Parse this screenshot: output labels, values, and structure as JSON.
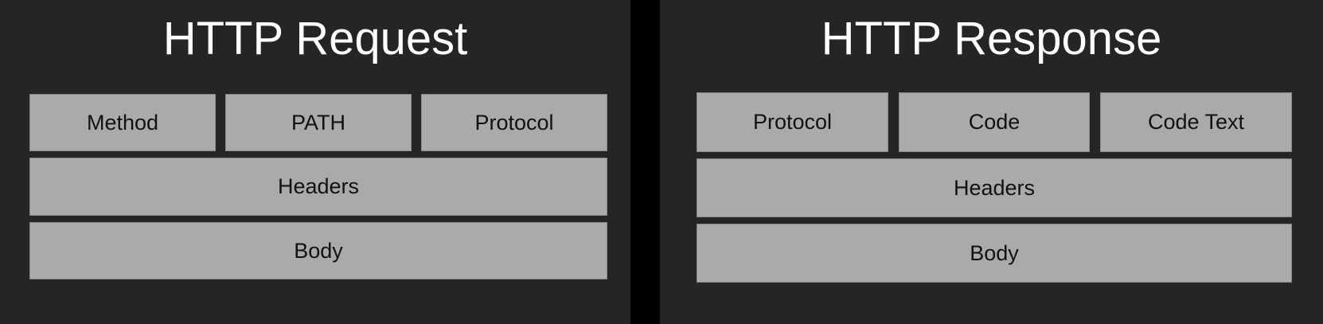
{
  "request": {
    "title": "HTTP Request",
    "fields": {
      "method": "Method",
      "path": "PATH",
      "protocol": "Protocol",
      "headers": "Headers",
      "body": "Body"
    }
  },
  "response": {
    "title": "HTTP Response",
    "fields": {
      "protocol": "Protocol",
      "code": "Code",
      "code_text": "Code Text",
      "headers": "Headers",
      "body": "Body"
    }
  },
  "colors": {
    "panel_background": "#252525",
    "box_fill": "#aaaaaa",
    "title_text": "#ffffff",
    "box_text": "#111111"
  }
}
